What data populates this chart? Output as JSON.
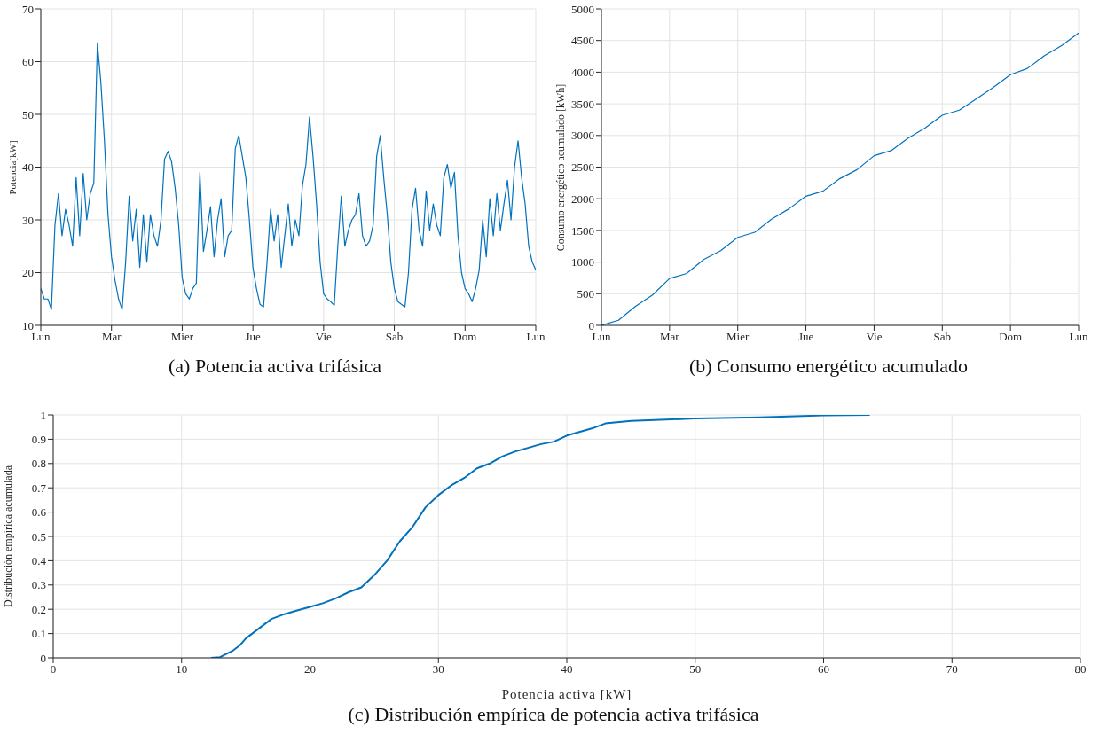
{
  "chart_data": [
    {
      "type": "line",
      "title": "(a) Potencia activa trifásica",
      "ylabel": "Potencia[kW]",
      "grid": true,
      "ylim": [
        10,
        70
      ],
      "categories": [
        "Lun",
        null,
        null,
        null,
        null,
        null,
        null,
        null,
        null,
        null,
        null,
        null,
        null,
        null,
        null,
        null,
        null,
        null,
        null,
        null,
        "Mar",
        null,
        null,
        null,
        null,
        null,
        null,
        null,
        null,
        null,
        null,
        null,
        null,
        null,
        null,
        null,
        null,
        null,
        null,
        null,
        "Mier",
        null,
        null,
        null,
        null,
        null,
        null,
        null,
        null,
        null,
        null,
        null,
        null,
        null,
        null,
        null,
        null,
        null,
        null,
        null,
        "Jue",
        null,
        null,
        null,
        null,
        null,
        null,
        null,
        null,
        null,
        null,
        null,
        null,
        null,
        null,
        null,
        null,
        null,
        null,
        null,
        "Vie",
        null,
        null,
        null,
        null,
        null,
        null,
        null,
        null,
        null,
        null,
        null,
        null,
        null,
        null,
        null,
        null,
        null,
        null,
        null,
        "Sab",
        null,
        null,
        null,
        null,
        null,
        null,
        null,
        null,
        null,
        null,
        null,
        null,
        null,
        null,
        null,
        null,
        null,
        null,
        null,
        "Dom",
        null,
        null,
        null,
        null,
        null,
        null,
        null,
        null,
        null,
        null,
        null,
        null,
        null,
        null,
        null,
        null,
        null,
        null,
        null,
        "Lun"
      ],
      "yticks": [
        10,
        20,
        30,
        40,
        50,
        60,
        70
      ],
      "series": [
        {
          "color": "#0072bd",
          "values": [
            17,
            15,
            15,
            13,
            29,
            35,
            27,
            32,
            29,
            25,
            38,
            27,
            38.8,
            30,
            35,
            37,
            63.5,
            56,
            45,
            31,
            23,
            18.5,
            15,
            13,
            22,
            34.5,
            26,
            32,
            21,
            31,
            22,
            31,
            27,
            25,
            30,
            41.5,
            43,
            41,
            36,
            29,
            19,
            16,
            15,
            17,
            18,
            39,
            24,
            28,
            32.5,
            23,
            30,
            34,
            23,
            27,
            28,
            43.5,
            46,
            42,
            38,
            30,
            21,
            17,
            14,
            13.5,
            22,
            32,
            26,
            31,
            21,
            27,
            33,
            25,
            30,
            27,
            36.5,
            40.5,
            49.5,
            42,
            33,
            22,
            16,
            15,
            14.5,
            13.8,
            25,
            34.5,
            25,
            28,
            30,
            31,
            35,
            27,
            25,
            26,
            29,
            42,
            46,
            38,
            31,
            22,
            17,
            14.5,
            14,
            13.5,
            20,
            32,
            36,
            28,
            25,
            35.5,
            28,
            33,
            29,
            27,
            38,
            40.5,
            36,
            39,
            27,
            20,
            17,
            16,
            14.5,
            17,
            20.5,
            30,
            23,
            34,
            27,
            35,
            28,
            33,
            37.5,
            30,
            40,
            45,
            38,
            33,
            25,
            22,
            20.5
          ]
        }
      ]
    },
    {
      "type": "line",
      "title": "(b) Consumo energético acumulado",
      "ylabel": "Consumo energético acumulado [kWh]",
      "grid": true,
      "ylim": [
        0,
        5000
      ],
      "categories": [
        "Lun",
        null,
        null,
        null,
        "Mar",
        null,
        null,
        null,
        "Mier",
        null,
        null,
        null,
        "Jue",
        null,
        null,
        null,
        "Vie",
        null,
        null,
        null,
        "Sab",
        null,
        null,
        null,
        "Dom",
        null,
        null,
        null,
        "Lun"
      ],
      "yticks": [
        0,
        500,
        1000,
        1500,
        2000,
        2500,
        3000,
        3500,
        4000,
        4500,
        5000
      ],
      "series": [
        {
          "color": "#0072bd",
          "values": [
            0,
            80,
            300,
            480,
            740,
            820,
            1040,
            1180,
            1390,
            1470,
            1680,
            1840,
            2040,
            2120,
            2320,
            2460,
            2680,
            2760,
            2960,
            3120,
            3320,
            3400,
            3580,
            3760,
            3960,
            4060,
            4260,
            4420,
            4620
          ]
        }
      ]
    },
    {
      "type": "line",
      "title": "(c) Distribución empírica de potencia activa trifásica",
      "xlabel": "Potencia activa [kW]",
      "ylabel": "Distribución empírica acumulada",
      "grid": true,
      "xlim": [
        0,
        80
      ],
      "ylim": [
        0,
        1
      ],
      "xticks": [
        0,
        10,
        20,
        30,
        40,
        50,
        60,
        70,
        80
      ],
      "yticks": [
        0,
        0.1,
        0.2,
        0.3,
        0.4,
        0.5,
        0.6,
        0.7,
        0.8,
        0.9,
        1
      ],
      "series": [
        {
          "color": "#0072bd",
          "x": [
            12.3,
            13,
            14,
            14.5,
            15,
            16,
            17,
            18,
            19,
            20,
            21,
            22,
            23,
            24,
            25,
            26,
            27,
            28,
            29,
            30,
            31,
            32,
            33,
            34,
            35,
            36,
            38,
            39,
            40,
            42,
            43,
            45,
            50,
            55,
            60,
            63.6
          ],
          "values": [
            0,
            0.003,
            0.03,
            0.05,
            0.08,
            0.12,
            0.16,
            0.18,
            0.195,
            0.21,
            0.225,
            0.245,
            0.27,
            0.29,
            0.34,
            0.4,
            0.48,
            0.54,
            0.62,
            0.67,
            0.71,
            0.74,
            0.78,
            0.8,
            0.83,
            0.85,
            0.88,
            0.89,
            0.915,
            0.945,
            0.965,
            0.975,
            0.985,
            0.99,
            0.998,
            1
          ]
        }
      ]
    }
  ]
}
